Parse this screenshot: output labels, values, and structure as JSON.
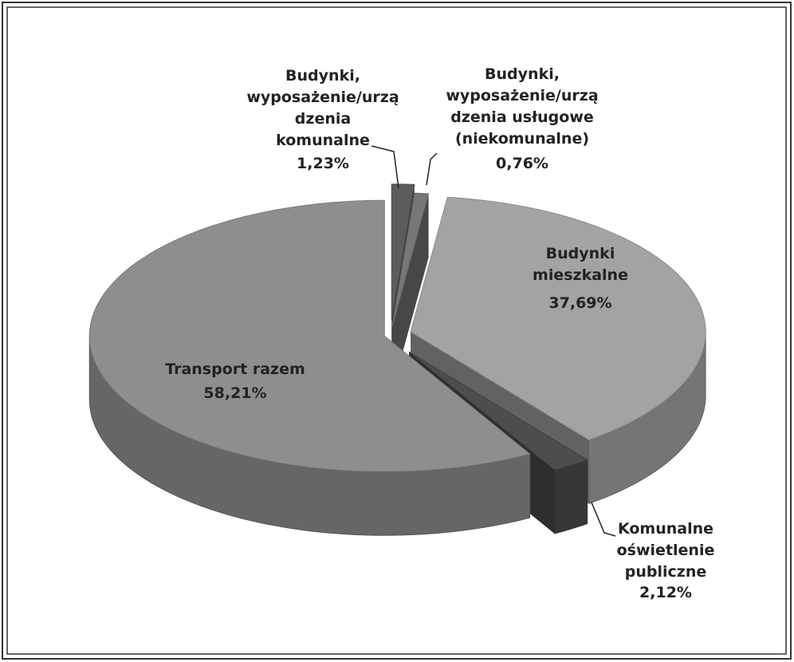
{
  "chart_data": {
    "type": "pie3d",
    "categories": [
      "Budynki,\nwyposażenie/urzą\ndzenia\nkomunalne",
      "Budynki,\nwyposażenie/urzą\ndzenia usługowe\n(niekomunalne)",
      "Budynki\nmieszkalne",
      "Komunalne\noświetlenie\npubliczne",
      "Transport razem"
    ],
    "values": [
      1.23,
      0.76,
      37.69,
      2.12,
      58.21
    ],
    "value_labels": [
      "1,23%",
      "0,76%",
      "37,69%",
      "2,12%",
      "58,21%"
    ],
    "colors": [
      "#5c5c5c",
      "#777777",
      "#a3a3a3",
      "#4d4d4d",
      "#8e8e8e"
    ]
  }
}
